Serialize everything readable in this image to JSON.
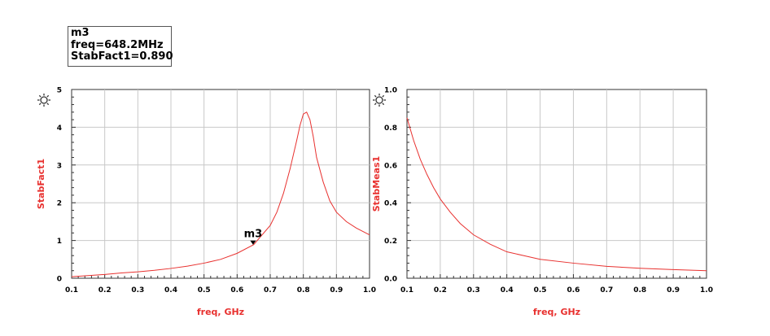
{
  "marker_box": {
    "name": "m3",
    "line1": "freq=648.2MHz",
    "line2": "StabFact1=0.890"
  },
  "chart_data": [
    {
      "type": "line",
      "xlabel": "freq, GHz",
      "ylabel": "StabFact1",
      "xlim": [
        0.1,
        1.0
      ],
      "ylim": [
        0,
        5
      ],
      "xticks": [
        "0.1",
        "0.2",
        "0.3",
        "0.4",
        "0.5",
        "0.6",
        "0.7",
        "0.8",
        "0.9",
        "1.0"
      ],
      "yticks": [
        "0",
        "1",
        "2",
        "3",
        "4",
        "5"
      ],
      "grid": true,
      "line_color": "#e8312f",
      "label_color": "#e8312f",
      "series": [
        {
          "x": [
            0.1,
            0.15,
            0.2,
            0.25,
            0.3,
            0.35,
            0.4,
            0.45,
            0.5,
            0.55,
            0.6,
            0.65,
            0.7,
            0.72,
            0.74,
            0.76,
            0.78,
            0.79,
            0.8,
            0.81,
            0.82,
            0.83,
            0.84,
            0.86,
            0.88,
            0.9,
            0.93,
            0.96,
            1.0
          ],
          "values": [
            0.04,
            0.07,
            0.1,
            0.14,
            0.17,
            0.21,
            0.26,
            0.32,
            0.4,
            0.5,
            0.66,
            0.89,
            1.4,
            1.75,
            2.25,
            2.9,
            3.65,
            4.05,
            4.35,
            4.4,
            4.2,
            3.75,
            3.2,
            2.55,
            2.05,
            1.75,
            1.5,
            1.33,
            1.15
          ]
        }
      ],
      "markers": [
        {
          "label": "m3",
          "x": 0.6482,
          "y": 0.89
        }
      ]
    },
    {
      "type": "line",
      "xlabel": "freq, GHz",
      "ylabel": "StabMeas1",
      "xlim": [
        0.1,
        1.0
      ],
      "ylim": [
        0,
        1.0
      ],
      "xticks": [
        "0.1",
        "0.2",
        "0.3",
        "0.4",
        "0.5",
        "0.6",
        "0.7",
        "0.8",
        "0.9",
        "1.0"
      ],
      "yticks": [
        "0.0",
        "0.2",
        "0.4",
        "0.6",
        "0.8",
        "1.0"
      ],
      "grid": true,
      "line_color": "#e8312f",
      "label_color": "#e8312f",
      "series": [
        {
          "x": [
            0.1,
            0.12,
            0.14,
            0.16,
            0.18,
            0.2,
            0.23,
            0.26,
            0.3,
            0.35,
            0.4,
            0.45,
            0.5,
            0.6,
            0.7,
            0.8,
            0.9,
            1.0
          ],
          "values": [
            0.85,
            0.73,
            0.63,
            0.55,
            0.48,
            0.42,
            0.35,
            0.29,
            0.23,
            0.18,
            0.14,
            0.12,
            0.1,
            0.08,
            0.063,
            0.053,
            0.046,
            0.04
          ]
        }
      ],
      "markers": []
    }
  ]
}
